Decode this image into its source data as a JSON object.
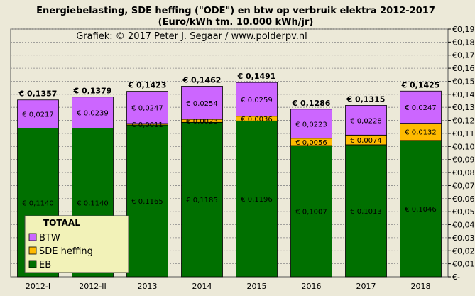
{
  "chart_data": {
    "type": "bar",
    "stacked": true,
    "title_line1": "Energiebelasting,  SDE heffing  (\"ODE\") en btw op verbruik elektra 2012-2017",
    "title_line2": "(Euro/kWh tm. 10.000 kWh/jr)",
    "subtitle": "Grafiek:  © 2017  Peter J. Segaar / www.polderpv.nl",
    "categories": [
      "2012-I",
      "2012-II",
      "2013",
      "2014",
      "2015",
      "2016",
      "2017",
      "2018"
    ],
    "series": [
      {
        "name": "EB",
        "color": "#007000",
        "values": [
          0.114,
          0.114,
          0.1165,
          0.1185,
          0.1196,
          0.1007,
          0.1013,
          0.1046
        ],
        "labels": [
          "€ 0,1140",
          "€ 0,1140",
          "€ 0,1165",
          "€ 0,1185",
          "€ 0,1196",
          "€ 0,1007",
          "€ 0,1013",
          "€ 0,1046"
        ]
      },
      {
        "name": "SDE heffing",
        "color": "#ffbb00",
        "values": [
          0,
          0,
          0.0011,
          0.0023,
          0.0036,
          0.0056,
          0.0074,
          0.0132
        ],
        "labels": [
          "",
          "",
          "€ 0,0011",
          "€ 0,0023",
          "€ 0,0036",
          "€ 0,0056",
          "€ 0,0074",
          "€ 0,0132"
        ]
      },
      {
        "name": "BTW",
        "color": "#cc66ff",
        "values": [
          0.0217,
          0.0239,
          0.0247,
          0.0254,
          0.0259,
          0.0223,
          0.0228,
          0.0247
        ],
        "labels": [
          "€ 0,0217",
          "€ 0,0239",
          "€ 0,0247",
          "€ 0,0254",
          "€ 0,0259",
          "€ 0,0223",
          "€ 0,0228",
          "€ 0,0247"
        ]
      }
    ],
    "totals": [
      "€ 0,1357",
      "€ 0,1379",
      "€ 0,1423",
      "€ 0,1462",
      "€ 0,1491",
      "€ 0,1286",
      "€ 0,1315",
      "€ 0,1425"
    ],
    "y_ticks": [
      0,
      0.01,
      0.02,
      0.03,
      0.04,
      0.05,
      0.06,
      0.07,
      0.08,
      0.09,
      0.1,
      0.11,
      0.12,
      0.13,
      0.14,
      0.15,
      0.16,
      0.17,
      0.18,
      0.19
    ],
    "y_tick_labels": [
      "€-",
      "€0,01",
      "€0,02",
      "€0,03",
      "€0,04",
      "€0,05",
      "€0,06",
      "€0,07",
      "€0,08",
      "€0,09",
      "€0,10",
      "€0,11",
      "€0,12",
      "€0,13",
      "€0,14",
      "€0,15",
      "€0,16",
      "€0,17",
      "€0,18",
      "€0,19"
    ],
    "ylim": [
      0,
      0.19
    ],
    "grid": true,
    "legend": {
      "title": "TOTAAL",
      "position": "bottom-left",
      "entries": [
        "BTW",
        "SDE heffing",
        "EB"
      ]
    },
    "colors": {
      "background": "#ece9d8",
      "grid": "#888888",
      "legend_bg": "#f2f2b8"
    }
  }
}
